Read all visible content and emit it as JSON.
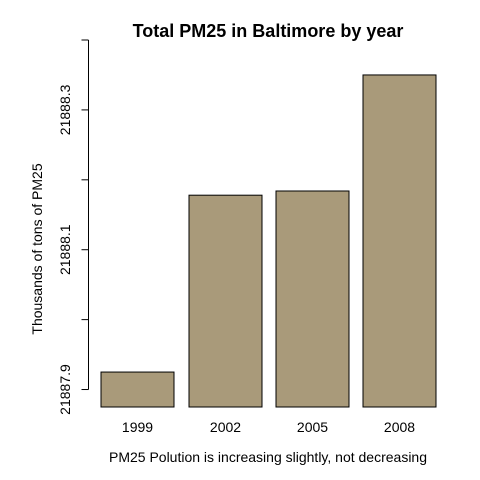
{
  "chart_data": {
    "type": "bar",
    "title": "Total PM25 in Baltimore by year",
    "xlabel": "PM25 Polution is increasing slightly, not decreasing",
    "ylabel": "Thousands of tons of PM25",
    "categories": [
      "1999",
      "2002",
      "2005",
      "2008"
    ],
    "values": [
      21887.925,
      21888.178,
      21888.184,
      21888.35
    ],
    "ylim": [
      21887.875,
      21888.4
    ],
    "y_axis_range": [
      21887.9,
      21888.4
    ],
    "yticks": [
      21887.9,
      21888.0,
      21888.1,
      21888.2,
      21888.3,
      21888.4
    ],
    "ytick_labels": [
      "21887.9",
      "",
      "21888.1",
      "",
      "21888.3",
      ""
    ],
    "grid": false,
    "legend": "none",
    "colors": {
      "bar_fill": "#A99A7A",
      "bar_stroke": "#000000",
      "axis": "#000000",
      "text": "#000000"
    }
  }
}
